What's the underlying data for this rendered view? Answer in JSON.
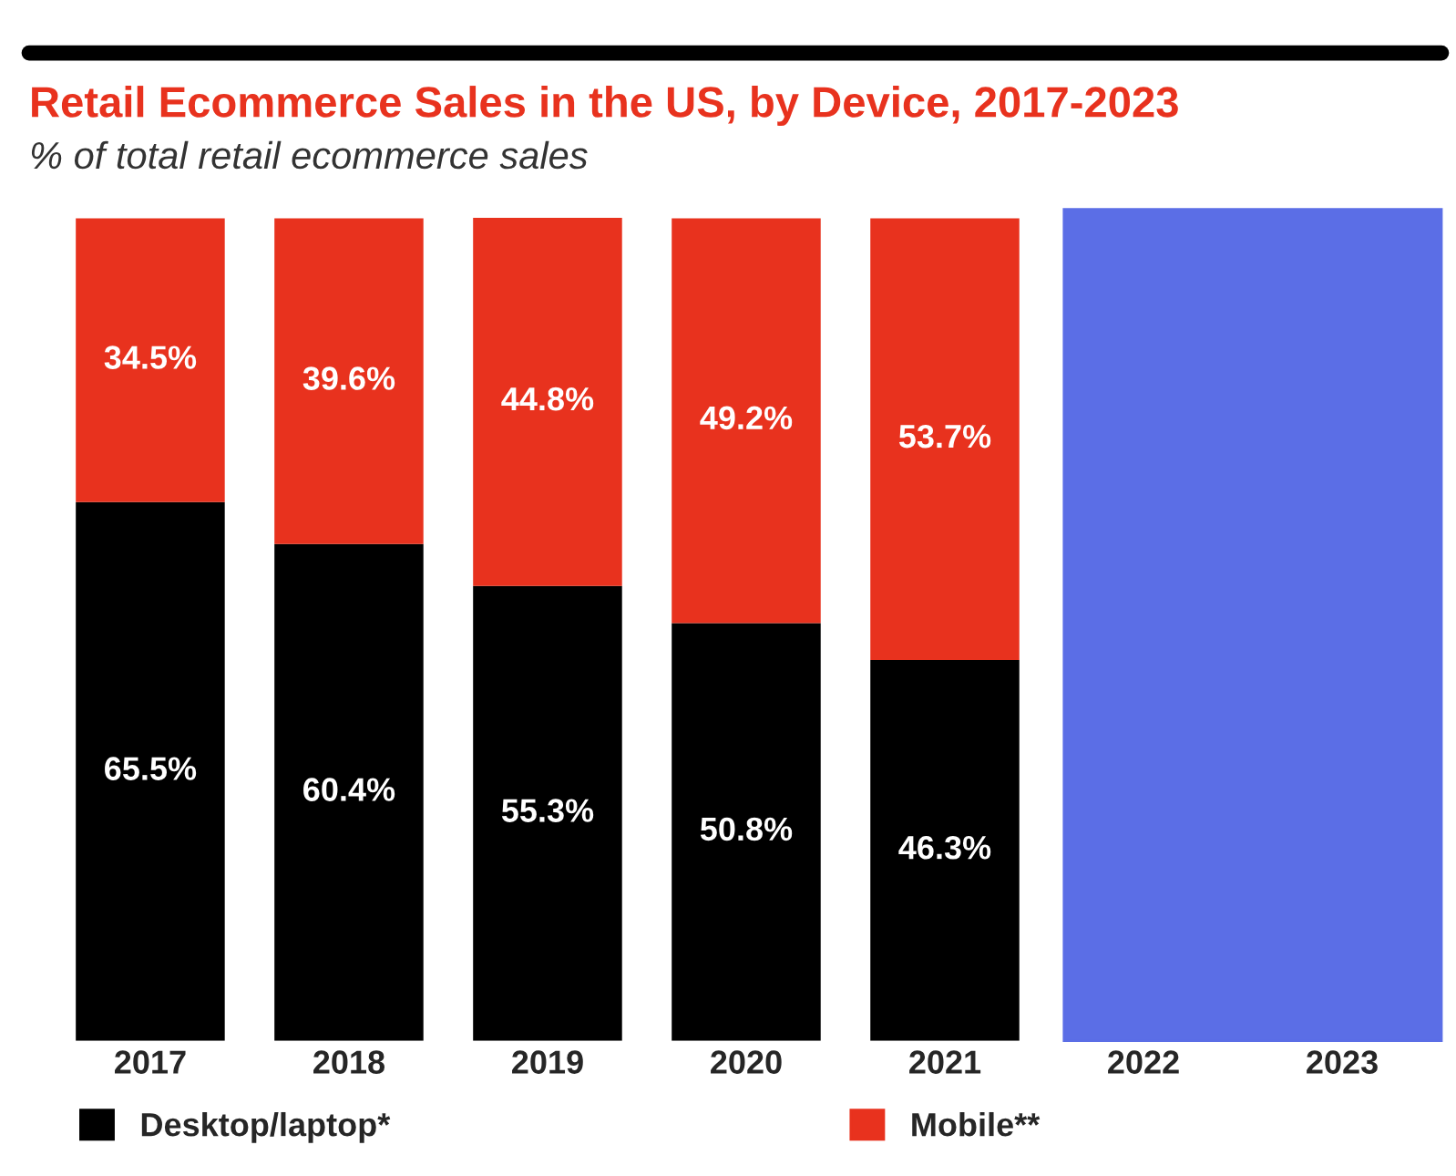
{
  "chart_data": {
    "type": "bar",
    "stacked": true,
    "title": "Retail Ecommerce Sales in the US, by Device, 2017-2023",
    "subtitle": "% of total retail ecommerce sales",
    "categories": [
      "2017",
      "2018",
      "2019",
      "2020",
      "2021",
      "2022",
      "2023"
    ],
    "series": [
      {
        "name": "Desktop/laptop*",
        "color": "#000000",
        "values": [
          65.5,
          60.4,
          55.3,
          50.8,
          46.3,
          null,
          null
        ],
        "value_labels": [
          "65.5%",
          "60.4%",
          "55.3%",
          "50.8%",
          "46.3%",
          null,
          null
        ]
      },
      {
        "name": "Mobile**",
        "color": "#e8321e",
        "values": [
          34.5,
          39.6,
          44.8,
          49.2,
          53.7,
          null,
          null
        ],
        "value_labels": [
          "34.5%",
          "39.6%",
          "44.8%",
          "49.2%",
          "53.7%",
          null,
          null
        ]
      }
    ],
    "legend": "bottom",
    "grid": false
  }
}
